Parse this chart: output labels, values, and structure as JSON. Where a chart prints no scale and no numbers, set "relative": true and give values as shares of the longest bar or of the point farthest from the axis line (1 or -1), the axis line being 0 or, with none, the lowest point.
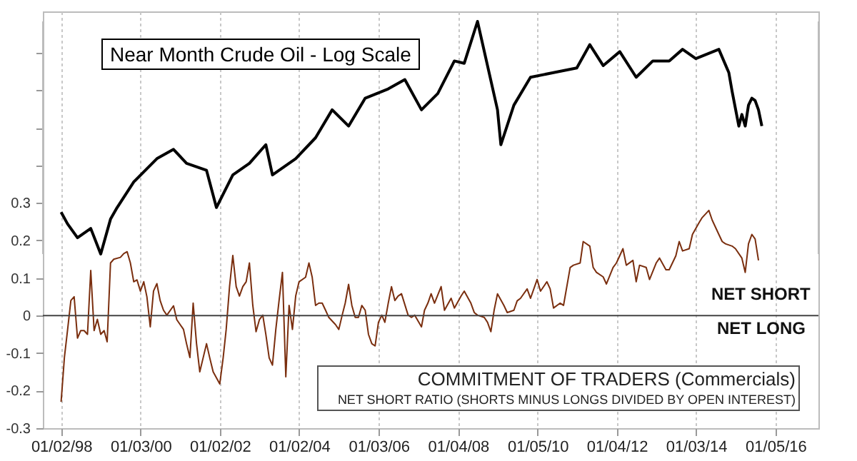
{
  "chart_data": [
    {
      "type": "line",
      "title": "Near Month Crude Oil - Log Scale",
      "relative": true,
      "tick_labels": false,
      "xlim": [
        "1997-07-17",
        "2017-02-03"
      ],
      "x": [
        "1998-01",
        "1998-03",
        "1998-06",
        "1998-10",
        "1999-01",
        "1999-04",
        "1999-06",
        "1999-11",
        "2000-06",
        "2000-11",
        "2001-03",
        "2001-09",
        "2001-12",
        "2002-05",
        "2002-10",
        "2003-03",
        "2003-05",
        "2003-12",
        "2004-06",
        "2004-11",
        "2005-04",
        "2005-09",
        "2006-04",
        "2006-09",
        "2007-02",
        "2007-07",
        "2007-12",
        "2008-03",
        "2008-07",
        "2009-01",
        "2009-02",
        "2009-06",
        "2009-11",
        "2010-06",
        "2011-01",
        "2011-05",
        "2011-09",
        "2012-02",
        "2012-07",
        "2012-12",
        "2013-05",
        "2013-09",
        "2014-01",
        "2014-08",
        "2014-11",
        "2014-12",
        "2015-02",
        "2015-03",
        "2015-04",
        "2015-05",
        "2015-06",
        "2015-07",
        "2015-08",
        "2015-09"
      ],
      "series": [
        {
          "color": "#000000",
          "values": [
            0.18,
            0.13,
            0.07,
            0.11,
            0,
            0.15,
            0.2,
            0.31,
            0.41,
            0.45,
            0.39,
            0.36,
            0.2,
            0.34,
            0.39,
            0.47,
            0.34,
            0.41,
            0.5,
            0.62,
            0.55,
            0.67,
            0.71,
            0.75,
            0.62,
            0.69,
            0.83,
            0.82,
            1,
            0.62,
            0.47,
            0.64,
            0.76,
            0.78,
            0.8,
            0.9,
            0.81,
            0.87,
            0.76,
            0.83,
            0.83,
            0.88,
            0.84,
            0.88,
            0.78,
            0.7,
            0.55,
            0.6,
            0.55,
            0.64,
            0.67,
            0.66,
            0.62,
            0.55
          ]
        }
      ]
    },
    {
      "type": "line",
      "grid": "x",
      "xlim": [
        "1997-07-17",
        "2017-02-03"
      ],
      "ylim": [
        -0.3,
        0.81
      ],
      "xticks": [
        {
          "value": "1998-01-02",
          "label": "01/02/98"
        },
        {
          "value": "2000-01-03",
          "label": "01/03/00"
        },
        {
          "value": "2002-01-02",
          "label": "01/02/02"
        },
        {
          "value": "2004-01-02",
          "label": "01/02/04"
        },
        {
          "value": "2006-01-03",
          "label": "01/03/06"
        },
        {
          "value": "2008-01-04",
          "label": "01/04/08"
        },
        {
          "value": "2010-01-05",
          "label": "01/05/10"
        },
        {
          "value": "2012-01-04",
          "label": "01/04/12"
        },
        {
          "value": "2014-01-03",
          "label": "01/03/14"
        },
        {
          "value": "2016-01-05",
          "label": "01/05/16"
        }
      ],
      "yticks": [
        -0.3,
        -0.2,
        -0.1,
        0,
        0.1,
        0.2,
        0.3,
        {
          "value": 0.4,
          "label": null
        },
        {
          "value": 0.5,
          "label": null
        },
        {
          "value": 0.6,
          "label": null
        },
        {
          "value": 0.7,
          "label": null
        }
      ],
      "ref_lines": [
        {
          "axis": "y",
          "value": 0,
          "color": "#444444"
        }
      ],
      "annotations": [
        "COMMITMENT OF TRADERS (Commercials)",
        "NET SHORT RATIO (SHORTS MINUS LONGS DIVIDED BY OPEN INTEREST)",
        "NET SHORT",
        "NET LONG"
      ],
      "x": [
        "1998-01",
        "1998-02",
        "1998-03",
        "1998-04",
        "1998-05",
        "1998-06",
        "1998-07",
        "1998-08",
        "1998-09",
        "1998-10",
        "1998-11",
        "1998-12",
        "1999-01",
        "1999-02",
        "1999-03",
        "1999-04",
        "1999-05",
        "1999-07",
        "1999-08",
        "1999-09",
        "1999-10",
        "1999-11",
        "1999-12",
        "2000-01",
        "2000-02",
        "2000-03",
        "2000-04",
        "2000-05",
        "2000-06",
        "2000-07",
        "2000-08",
        "2000-09",
        "2000-11",
        "2000-12",
        "2001-02",
        "2001-03",
        "2001-04",
        "2001-05",
        "2001-06",
        "2001-07",
        "2001-09",
        "2001-10",
        "2001-11",
        "2002-01",
        "2002-02",
        "2002-03",
        "2002-04",
        "2002-05",
        "2002-06",
        "2002-07",
        "2002-08",
        "2002-09",
        "2002-10",
        "2002-11",
        "2002-12",
        "2003-01",
        "2003-02",
        "2003-03",
        "2003-04",
        "2003-05",
        "2003-06",
        "2003-07",
        "2003-08",
        "2003-09",
        "2003-10",
        "2003-11",
        "2003-12",
        "2004-01",
        "2004-03",
        "2004-04",
        "2004-05",
        "2004-06",
        "2004-07",
        "2004-08",
        "2004-09",
        "2004-10",
        "2004-12",
        "2005-01",
        "2005-02",
        "2005-03",
        "2005-04",
        "2005-05",
        "2005-06",
        "2005-07",
        "2005-08",
        "2005-09",
        "2005-10",
        "2005-11",
        "2005-12",
        "2006-01",
        "2006-02",
        "2006-03",
        "2006-04",
        "2006-05",
        "2006-06",
        "2006-07",
        "2006-08",
        "2006-10",
        "2006-11",
        "2006-12",
        "2007-02",
        "2007-03",
        "2007-04",
        "2007-05",
        "2007-06",
        "2007-08",
        "2007-09",
        "2007-11",
        "2007-12",
        "2008-02",
        "2008-03",
        "2008-05",
        "2008-06",
        "2008-07",
        "2008-09",
        "2008-10",
        "2008-11",
        "2008-12",
        "2009-01",
        "2009-03",
        "2009-04",
        "2009-06",
        "2009-07",
        "2009-08",
        "2009-10",
        "2009-11",
        "2010-01",
        "2010-02",
        "2010-04",
        "2010-05",
        "2010-06",
        "2010-08",
        "2010-09",
        "2010-11",
        "2010-12",
        "2011-02",
        "2011-03",
        "2011-05",
        "2011-06",
        "2011-07",
        "2011-09",
        "2011-10",
        "2011-12",
        "2012-01",
        "2012-03",
        "2012-04",
        "2012-06",
        "2012-07",
        "2012-08",
        "2012-10",
        "2012-11",
        "2013-01",
        "2013-02",
        "2013-04",
        "2013-05",
        "2013-07",
        "2013-08",
        "2013-09",
        "2013-11",
        "2013-12",
        "2014-02",
        "2014-03",
        "2014-05",
        "2014-06",
        "2014-08",
        "2014-09",
        "2014-10",
        "2014-12",
        "2015-01",
        "2015-03",
        "2015-04",
        "2015-05",
        "2015-06",
        "2015-07",
        "2015-08"
      ],
      "series": [
        {
          "color": "#7a2e0e",
          "values": [
            -0.23,
            -0.11,
            -0.04,
            0.04,
            0.05,
            -0.06,
            -0.04,
            -0.04,
            -0.05,
            0.12,
            -0.04,
            -0.01,
            -0.05,
            -0.04,
            -0.07,
            0.14,
            0.15,
            0.155,
            0.165,
            0.17,
            0.14,
            0.09,
            0.095,
            0.065,
            0.09,
            0.05,
            -0.03,
            0.065,
            0.085,
            0.04,
            0.014,
            0.001,
            0.026,
            -0.011,
            -0.037,
            -0.075,
            -0.112,
            0.033,
            -0.075,
            -0.15,
            -0.075,
            -0.113,
            -0.15,
            -0.182,
            -0.113,
            -0.037,
            0.077,
            0.16,
            0.077,
            0.052,
            0.077,
            0.09,
            0.14,
            0.027,
            -0.043,
            -0.011,
            0.001,
            -0.05,
            -0.113,
            -0.132,
            -0.037,
            0.04,
            0.115,
            -0.163,
            0.027,
            -0.037,
            0.052,
            0.09,
            0.102,
            0.14,
            0.102,
            0.027,
            0.033,
            0.033,
            0.014,
            -0.005,
            -0.024,
            -0.037,
            0.001,
            0.033,
            0.083,
            0.027,
            -0.005,
            -0.005,
            0.027,
            0.014,
            -0.05,
            -0.075,
            -0.081,
            -0.018,
            0.001,
            -0.018,
            0.033,
            0.077,
            0.04,
            0.052,
            0.058,
            0.001,
            -0.005,
            0.001,
            -0.03,
            0.014,
            0.033,
            0.058,
            0.033,
            0.077,
            0.014,
            0.046,
            0.02,
            0.052,
            0.065,
            0.033,
            0.008,
            0.001,
            -0.005,
            -0.018,
            -0.043,
            0.014,
            0.058,
            0.027,
            0.008,
            0.014,
            0.039,
            0.046,
            0.071,
            0.046,
            0.096,
            0.065,
            0.09,
            0.071,
            0.02,
            0.033,
            0.027,
            0.128,
            0.134,
            0.14,
            0.197,
            0.185,
            0.128,
            0.115,
            0.103,
            0.084,
            0.128,
            0.14,
            0.178,
            0.134,
            0.147,
            0.09,
            0.134,
            0.128,
            0.096,
            0.14,
            0.153,
            0.122,
            0.122,
            0.159,
            0.197,
            0.172,
            0.178,
            0.216,
            0.248,
            0.261,
            0.28,
            0.254,
            0.216,
            0.197,
            0.191,
            0.185,
            0.178,
            0.153,
            0.115,
            0.191,
            0.216,
            0.204,
            0.147
          ]
        }
      ]
    }
  ]
}
